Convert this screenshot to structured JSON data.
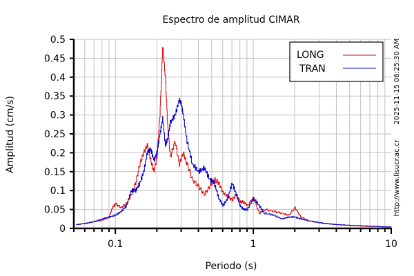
{
  "chart_data": {
    "type": "line",
    "title": "Espectro de amplitud CIMAR",
    "xlabel": "Periodo (s)",
    "ylabel": "Amplitud (cm/s)",
    "xscale": "log",
    "xlim": [
      0.05,
      10
    ],
    "ylim": [
      0,
      0.5
    ],
    "xticks": [
      "0.1",
      "1",
      "10"
    ],
    "yticks": [
      "0",
      "0.05",
      "0.1",
      "0.15",
      "0.2",
      "0.25",
      "0.3",
      "0.35",
      "0.4",
      "0.45",
      "0.5"
    ],
    "grid": true,
    "legend_position": "upper right",
    "series": [
      {
        "name": "LONG",
        "color": "#dd0000",
        "x": [
          0.052,
          0.06,
          0.07,
          0.08,
          0.09,
          0.095,
          0.1,
          0.11,
          0.12,
          0.13,
          0.14,
          0.15,
          0.16,
          0.17,
          0.18,
          0.19,
          0.2,
          0.21,
          0.22,
          0.23,
          0.24,
          0.25,
          0.27,
          0.29,
          0.31,
          0.33,
          0.36,
          0.4,
          0.44,
          0.48,
          0.52,
          0.56,
          0.6,
          0.65,
          0.7,
          0.75,
          0.8,
          0.85,
          0.9,
          1.0,
          1.1,
          1.2,
          1.4,
          1.6,
          1.8,
          2.0,
          2.2,
          2.5,
          3.0,
          3.5,
          4.0,
          5.0,
          6.0,
          7.0,
          8.0,
          9.0,
          10.0
        ],
        "y": [
          0.01,
          0.013,
          0.018,
          0.022,
          0.03,
          0.055,
          0.065,
          0.055,
          0.065,
          0.09,
          0.12,
          0.17,
          0.2,
          0.22,
          0.18,
          0.15,
          0.19,
          0.3,
          0.48,
          0.4,
          0.26,
          0.19,
          0.23,
          0.17,
          0.2,
          0.17,
          0.13,
          0.11,
          0.09,
          0.11,
          0.13,
          0.12,
          0.095,
          0.085,
          0.075,
          0.09,
          0.07,
          0.07,
          0.06,
          0.08,
          0.04,
          0.05,
          0.045,
          0.04,
          0.035,
          0.055,
          0.03,
          0.02,
          0.015,
          0.012,
          0.01,
          0.008,
          0.006,
          0.005,
          0.005,
          0.004,
          0.004
        ]
      },
      {
        "name": "TRAN",
        "color": "#0000cc",
        "x": [
          0.052,
          0.06,
          0.07,
          0.08,
          0.09,
          0.1,
          0.11,
          0.12,
          0.13,
          0.14,
          0.15,
          0.16,
          0.17,
          0.18,
          0.19,
          0.2,
          0.21,
          0.22,
          0.23,
          0.24,
          0.25,
          0.27,
          0.29,
          0.3,
          0.31,
          0.33,
          0.36,
          0.4,
          0.44,
          0.48,
          0.52,
          0.56,
          0.6,
          0.65,
          0.7,
          0.75,
          0.8,
          0.85,
          0.9,
          1.0,
          1.1,
          1.2,
          1.4,
          1.6,
          1.8,
          2.0,
          2.2,
          2.5,
          3.0,
          3.5,
          4.0,
          5.0,
          6.0,
          7.0,
          8.0,
          9.0,
          10.0
        ],
        "y": [
          0.01,
          0.013,
          0.018,
          0.025,
          0.03,
          0.035,
          0.045,
          0.06,
          0.1,
          0.1,
          0.12,
          0.15,
          0.2,
          0.21,
          0.18,
          0.2,
          0.25,
          0.29,
          0.22,
          0.24,
          0.28,
          0.3,
          0.34,
          0.33,
          0.3,
          0.23,
          0.17,
          0.15,
          0.16,
          0.13,
          0.12,
          0.08,
          0.06,
          0.08,
          0.12,
          0.09,
          0.06,
          0.05,
          0.05,
          0.08,
          0.06,
          0.04,
          0.035,
          0.025,
          0.03,
          0.03,
          0.025,
          0.02,
          0.015,
          0.012,
          0.01,
          0.008,
          0.007,
          0.006,
          0.005,
          0.004,
          0.004
        ]
      }
    ],
    "annotations": [
      "2025-11-15 06:25:30 AM",
      "http://www.lisucr.ac.cr"
    ]
  },
  "side": {
    "timestamp": "2025-11-15 06:25:30 AM",
    "url": "http://www.lisucr.ac.cr"
  }
}
